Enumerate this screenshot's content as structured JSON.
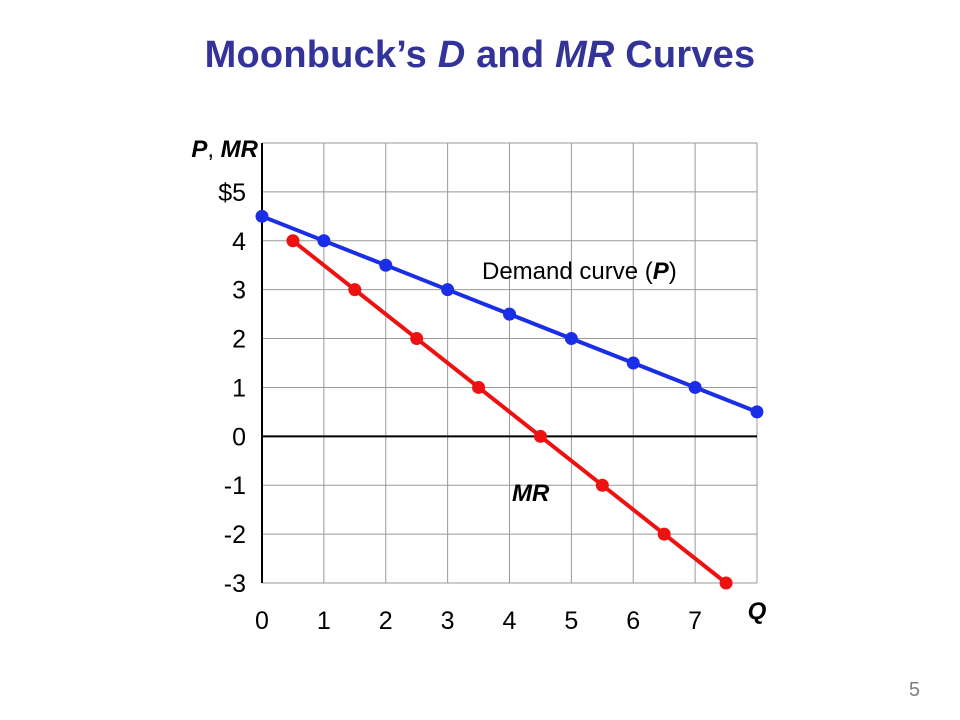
{
  "slide": {
    "title_part1": "Moonbuck’s ",
    "title_part2": "D",
    "title_part3": " and ",
    "title_part4": "MR",
    "title_part5": " Curves",
    "page_number": "5",
    "title_color": "#333399"
  },
  "chart_data": {
    "type": "line",
    "title": "Moonbuck’s D and MR Curves",
    "ylabel_parts": [
      "P",
      ", ",
      "MR"
    ],
    "xlabel": "Q",
    "xlim": [
      0,
      8
    ],
    "ylim": [
      -3,
      6
    ],
    "x_ticks": [
      "0",
      "1",
      "2",
      "3",
      "4",
      "5",
      "6",
      "7"
    ],
    "y_ticks": [
      {
        "value": 5,
        "label": "$5"
      },
      {
        "value": 4,
        "label": "4"
      },
      {
        "value": 3,
        "label": "3"
      },
      {
        "value": 2,
        "label": "2"
      },
      {
        "value": 1,
        "label": "1"
      },
      {
        "value": 0,
        "label": "0"
      },
      {
        "value": -1,
        "label": "-1"
      },
      {
        "value": -2,
        "label": "-2"
      },
      {
        "value": -3,
        "label": "-3"
      }
    ],
    "grid": true,
    "series": [
      {
        "key": "demand",
        "label_parts": [
          "Demand curve (",
          "P",
          ")"
        ],
        "color": "#1a2ee8",
        "points": [
          [
            0,
            4.5
          ],
          [
            1,
            4.0
          ],
          [
            2,
            3.5
          ],
          [
            3,
            3.0
          ],
          [
            4,
            2.5
          ],
          [
            5,
            2.0
          ],
          [
            6,
            1.5
          ],
          [
            7,
            1.0
          ],
          [
            8,
            0.5
          ]
        ]
      },
      {
        "key": "mr",
        "label_parts": [
          "MR"
        ],
        "color": "#ee1111",
        "points": [
          [
            0.5,
            4.0
          ],
          [
            1.5,
            3.0
          ],
          [
            2.5,
            2.0
          ],
          [
            3.5,
            1.0
          ],
          [
            4.5,
            0.0
          ],
          [
            5.5,
            -1.0
          ],
          [
            6.5,
            -2.0
          ],
          [
            7.5,
            -3.0
          ]
        ]
      }
    ]
  }
}
